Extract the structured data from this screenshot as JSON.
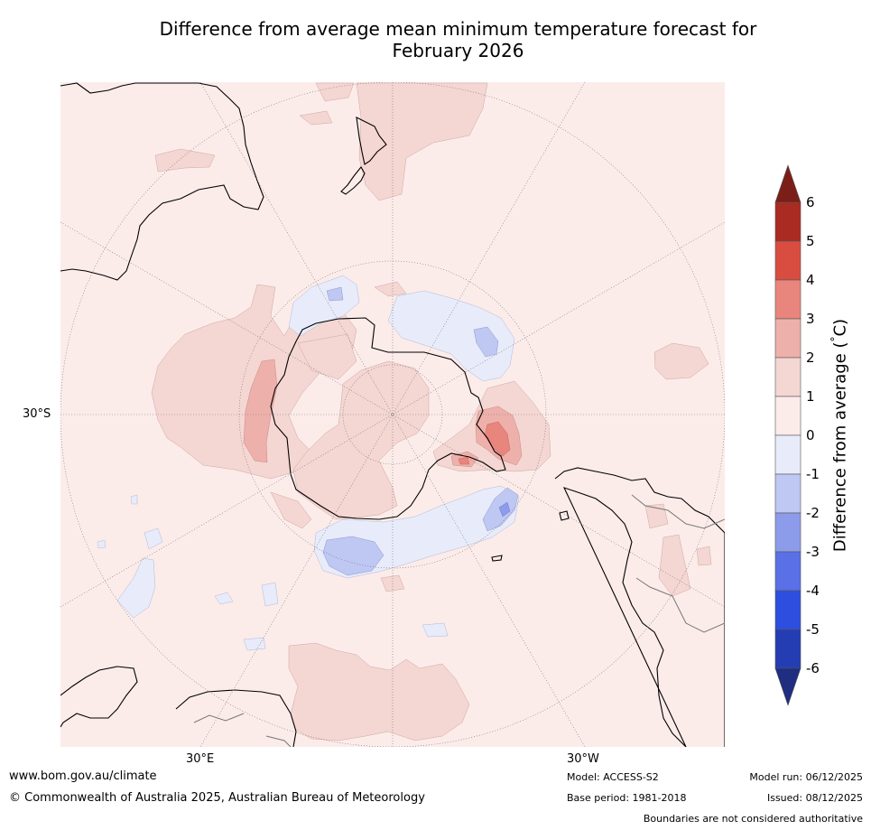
{
  "title": {
    "line1": "Difference from average mean minimum temperature forecast for",
    "line2": "February 2026"
  },
  "map": {
    "projection": "south-polar-stereographic",
    "latitude_labels": [
      "30°S"
    ],
    "longitude_labels": [
      "30°E",
      "30°W"
    ],
    "land_outline_color": "#000000",
    "border_color": "#777777"
  },
  "colorbar": {
    "label": "Difference from average (°C)",
    "label_text": "Difference from average (",
    "label_unit": "°",
    "label_end": "C)",
    "ticks": [
      "6",
      "5",
      "4",
      "3",
      "2",
      "1",
      "0",
      "-1",
      "-2",
      "-3",
      "-4",
      "-5",
      "-6"
    ],
    "bins": [
      {
        "range": "above 6",
        "color": "#7a1e17"
      },
      {
        "range": "5 to 6",
        "color": "#a92b22"
      },
      {
        "range": "4 to 5",
        "color": "#d94d40"
      },
      {
        "range": "3 to 4",
        "color": "#e8857c"
      },
      {
        "range": "2 to 3",
        "color": "#eeb0aa"
      },
      {
        "range": "1 to 2",
        "color": "#f4d6d2"
      },
      {
        "range": "0 to 1",
        "color": "#fbecea"
      },
      {
        "range": "-1 to 0",
        "color": "#e8ebfa"
      },
      {
        "range": "-2 to -1",
        "color": "#bfc7f3"
      },
      {
        "range": "-3 to -2",
        "color": "#8c9bea"
      },
      {
        "range": "-4 to -3",
        "color": "#5a70e6"
      },
      {
        "range": "-5 to -4",
        "color": "#2e4ee0"
      },
      {
        "range": "-6 to -5",
        "color": "#253db2"
      },
      {
        "range": "below -6",
        "color": "#1f2e80"
      }
    ]
  },
  "footer": {
    "website": "www.bom.gov.au/climate",
    "copyright": "© Commonwealth of Australia 2025, Australian Bureau of Meteorology",
    "model": "Model: ACCESS-S2",
    "base_period": "Base period: 1981-2018",
    "model_run": "Model run: 06/12/2025",
    "issued": "Issued: 08/12/2025",
    "disclaimer": "Boundaries are not considered authoritative"
  }
}
